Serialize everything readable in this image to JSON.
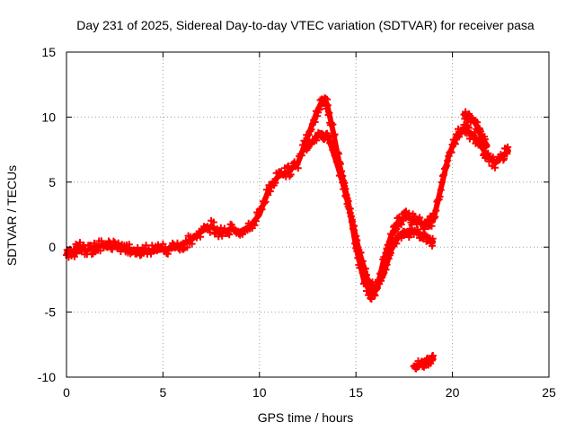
{
  "chart_data": {
    "type": "scatter",
    "title": "Day 231 of 2025, Sidereal Day-to-day VTEC variation (SDTVAR) for receiver pasa",
    "xlabel": "GPS time / hours",
    "ylabel": "SDTVAR / TECUs",
    "xlim": [
      0,
      25
    ],
    "ylim": [
      -10,
      15
    ],
    "xticks": [
      "0",
      "5",
      "10",
      "15",
      "20",
      "25"
    ],
    "yticks": [
      "-10",
      "-5",
      "0",
      "5",
      "10",
      "15"
    ],
    "xtick_values": [
      0,
      5,
      10,
      15,
      20,
      25
    ],
    "ytick_values": [
      -10,
      -5,
      0,
      5,
      10,
      15
    ],
    "grid": true,
    "series": [
      {
        "name": "main-track",
        "color": "#ff0000",
        "band": 0.45,
        "x": [
          0.0,
          0.3,
          0.6,
          1.0,
          1.5,
          2.0,
          2.5,
          3.0,
          3.5,
          4.0,
          4.5,
          5.0,
          5.5,
          6.0,
          6.5,
          7.0,
          7.5,
          8.0,
          8.5,
          9.0,
          9.5,
          10.0,
          10.5,
          11.0,
          11.5,
          12.0,
          12.5,
          13.0,
          13.3,
          13.5,
          13.8,
          14.2,
          14.6,
          15.0,
          15.4,
          15.8,
          16.1,
          16.4,
          16.8,
          17.2,
          17.6,
          18.0,
          18.4,
          18.8,
          19.0,
          19.4,
          19.8,
          20.2,
          20.6,
          21.0,
          21.4,
          21.8,
          22.2,
          22.6,
          22.9
        ],
        "y": [
          -0.5,
          -0.6,
          0.1,
          -0.3,
          0.0,
          0.2,
          0.0,
          -0.1,
          -0.2,
          -0.2,
          -0.3,
          -0.2,
          -0.1,
          0.2,
          0.6,
          1.2,
          1.6,
          1.1,
          1.4,
          1.2,
          1.6,
          2.5,
          4.5,
          5.5,
          5.8,
          6.5,
          8.5,
          10.5,
          11.4,
          11.0,
          9.0,
          6.0,
          3.5,
          0.0,
          -2.5,
          -3.7,
          -3.2,
          -1.2,
          0.8,
          2.0,
          2.3,
          2.1,
          1.8,
          1.9,
          2.0,
          4.5,
          7.0,
          8.5,
          9.0,
          8.7,
          8.0,
          7.0,
          6.5,
          7.0,
          7.4
        ]
      },
      {
        "name": "secondary-track",
        "color": "#ff0000",
        "band": 0.35,
        "x": [
          12.4,
          12.8,
          13.2,
          13.6,
          14.0,
          14.4,
          14.8,
          15.2,
          15.6,
          16.0,
          16.4,
          16.8,
          17.2,
          17.6,
          18.0,
          18.4,
          18.8,
          19.0
        ],
        "y": [
          7.5,
          8.2,
          8.8,
          8.3,
          6.5,
          4.5,
          2.0,
          -0.5,
          -2.5,
          -3.2,
          -2.2,
          -0.3,
          0.8,
          1.0,
          1.2,
          1.0,
          0.6,
          0.4
        ]
      },
      {
        "name": "upper-branch",
        "color": "#ff0000",
        "band": 0.35,
        "x": [
          20.6,
          20.9,
          21.2,
          21.5,
          21.8
        ],
        "y": [
          10.2,
          10.0,
          9.5,
          8.5,
          7.8
        ]
      },
      {
        "name": "outlier-cluster",
        "color": "#ff0000",
        "band": 0.3,
        "x": [
          18.0,
          18.3,
          18.6,
          18.9,
          19.0
        ],
        "y": [
          -9.2,
          -9.0,
          -8.9,
          -8.7,
          -8.5
        ]
      }
    ]
  }
}
